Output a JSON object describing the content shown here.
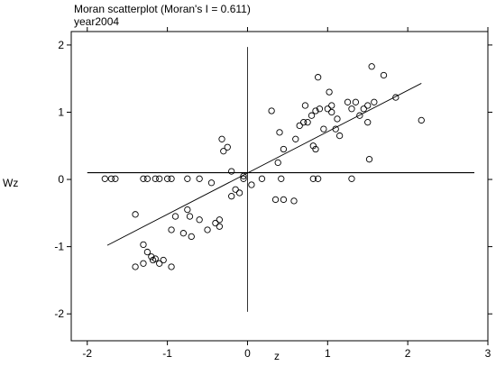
{
  "chart_data": {
    "type": "scatter",
    "title": "Moran scatterplot (Moran's I = 0.611)",
    "subtitle": "year2004",
    "xlabel": "z",
    "ylabel": "Wz",
    "xlim": [
      -2.2,
      3.0
    ],
    "ylim": [
      -2.4,
      2.2
    ],
    "xticks": [
      -2,
      -1,
      0,
      1,
      2,
      3
    ],
    "yticks": [
      -2,
      -1,
      0,
      1,
      2
    ],
    "xtick_labels": [
      "-2",
      "-1",
      "0",
      "1",
      "2",
      "3"
    ],
    "ytick_labels": [
      "-2",
      "-1",
      "0",
      "1",
      "2"
    ],
    "grid": false,
    "reference_lines": {
      "vertical_x": 0,
      "horizontal_y": 0.1
    },
    "fit_line": {
      "x": [
        -1.75,
        2.17
      ],
      "y": [
        -0.98,
        1.43
      ]
    },
    "points": [
      {
        "x": -1.78,
        "y": 0.01
      },
      {
        "x": -1.7,
        "y": 0.01
      },
      {
        "x": -1.65,
        "y": 0.01
      },
      {
        "x": -1.3,
        "y": 0.01
      },
      {
        "x": -1.25,
        "y": 0.01
      },
      {
        "x": -1.15,
        "y": 0.01
      },
      {
        "x": -1.1,
        "y": 0.01
      },
      {
        "x": -1.0,
        "y": 0.01
      },
      {
        "x": -0.95,
        "y": 0.01
      },
      {
        "x": -0.75,
        "y": 0.01
      },
      {
        "x": -0.6,
        "y": 0.01
      },
      {
        "x": -0.05,
        "y": 0.01
      },
      {
        "x": 0.18,
        "y": 0.01
      },
      {
        "x": 0.42,
        "y": 0.01
      },
      {
        "x": 0.82,
        "y": 0.01
      },
      {
        "x": 0.88,
        "y": 0.01
      },
      {
        "x": 1.3,
        "y": 0.01
      },
      {
        "x": -1.4,
        "y": -0.52
      },
      {
        "x": -1.3,
        "y": -0.97
      },
      {
        "x": -1.25,
        "y": -1.08
      },
      {
        "x": -1.2,
        "y": -1.15
      },
      {
        "x": -1.18,
        "y": -1.2
      },
      {
        "x": -1.15,
        "y": -1.18
      },
      {
        "x": -1.05,
        "y": -1.2
      },
      {
        "x": -1.1,
        "y": -1.25
      },
      {
        "x": -1.4,
        "y": -1.3
      },
      {
        "x": -1.3,
        "y": -1.25
      },
      {
        "x": -0.95,
        "y": -1.3
      },
      {
        "x": -0.95,
        "y": -0.75
      },
      {
        "x": -0.9,
        "y": -0.55
      },
      {
        "x": -0.8,
        "y": -0.8
      },
      {
        "x": -0.75,
        "y": -0.45
      },
      {
        "x": -0.72,
        "y": -0.55
      },
      {
        "x": -0.7,
        "y": -0.85
      },
      {
        "x": -0.6,
        "y": -0.6
      },
      {
        "x": -0.5,
        "y": -0.75
      },
      {
        "x": -0.4,
        "y": -0.65
      },
      {
        "x": -0.45,
        "y": -0.05
      },
      {
        "x": -0.35,
        "y": -0.6
      },
      {
        "x": -0.35,
        "y": -0.7
      },
      {
        "x": -0.2,
        "y": -0.25
      },
      {
        "x": -0.1,
        "y": -0.2
      },
      {
        "x": -0.15,
        "y": -0.15
      },
      {
        "x": -0.2,
        "y": 0.12
      },
      {
        "x": -0.05,
        "y": 0.05
      },
      {
        "x": 0.05,
        "y": -0.08
      },
      {
        "x": -0.32,
        "y": 0.6
      },
      {
        "x": -0.3,
        "y": 0.42
      },
      {
        "x": -0.25,
        "y": 0.48
      },
      {
        "x": 0.3,
        "y": 1.02
      },
      {
        "x": 0.38,
        "y": 0.25
      },
      {
        "x": 0.4,
        "y": 0.7
      },
      {
        "x": 0.45,
        "y": 0.45
      },
      {
        "x": 0.35,
        "y": -0.3
      },
      {
        "x": 0.45,
        "y": -0.3
      },
      {
        "x": 0.58,
        "y": -0.32
      },
      {
        "x": 0.6,
        "y": 0.6
      },
      {
        "x": 0.65,
        "y": 0.8
      },
      {
        "x": 0.7,
        "y": 0.85
      },
      {
        "x": 0.72,
        "y": 1.1
      },
      {
        "x": 0.75,
        "y": 0.85
      },
      {
        "x": 0.8,
        "y": 0.95
      },
      {
        "x": 0.82,
        "y": 0.5
      },
      {
        "x": 0.85,
        "y": 1.02
      },
      {
        "x": 0.85,
        "y": 0.45
      },
      {
        "x": 0.88,
        "y": 1.52
      },
      {
        "x": 0.9,
        "y": 1.05
      },
      {
        "x": 0.95,
        "y": 0.75
      },
      {
        "x": 1.0,
        "y": 1.05
      },
      {
        "x": 1.02,
        "y": 1.3
      },
      {
        "x": 1.05,
        "y": 1.0
      },
      {
        "x": 1.05,
        "y": 1.1
      },
      {
        "x": 1.1,
        "y": 0.75
      },
      {
        "x": 1.12,
        "y": 0.9
      },
      {
        "x": 1.15,
        "y": 0.65
      },
      {
        "x": 1.25,
        "y": 1.15
      },
      {
        "x": 1.3,
        "y": 1.05
      },
      {
        "x": 1.35,
        "y": 1.15
      },
      {
        "x": 1.4,
        "y": 0.95
      },
      {
        "x": 1.45,
        "y": 1.05
      },
      {
        "x": 1.5,
        "y": 1.1
      },
      {
        "x": 1.5,
        "y": 0.85
      },
      {
        "x": 1.52,
        "y": 0.3
      },
      {
        "x": 1.55,
        "y": 1.68
      },
      {
        "x": 1.58,
        "y": 1.15
      },
      {
        "x": 1.7,
        "y": 1.55
      },
      {
        "x": 1.85,
        "y": 1.22
      },
      {
        "x": 2.17,
        "y": 0.88
      }
    ]
  }
}
